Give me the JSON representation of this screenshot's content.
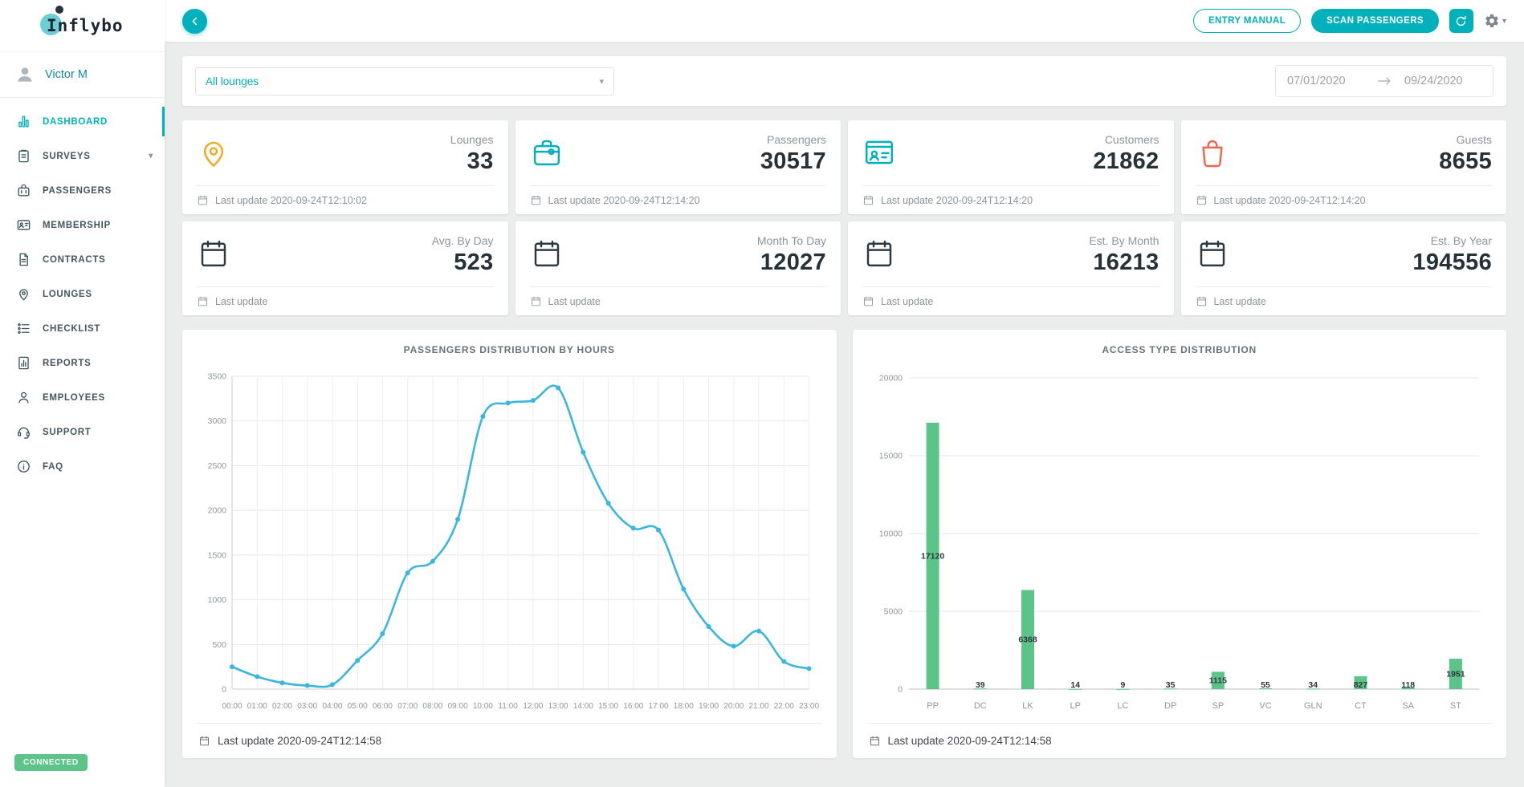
{
  "brand": {
    "name": "Inflybo",
    "connected_label": "CONNECTED"
  },
  "user": {
    "name": "Victor M"
  },
  "sidebar": {
    "items": [
      {
        "label": "DASHBOARD",
        "icon": "dashboard-icon",
        "active": true
      },
      {
        "label": "SURVEYS",
        "icon": "surveys-icon",
        "has_caret": true
      },
      {
        "label": "PASSENGERS",
        "icon": "passengers-icon"
      },
      {
        "label": "MEMBERSHIP",
        "icon": "membership-icon"
      },
      {
        "label": "CONTRACTS",
        "icon": "contracts-icon"
      },
      {
        "label": "LOUNGES",
        "icon": "lounges-icon"
      },
      {
        "label": "CHECKLIST",
        "icon": "checklist-icon"
      },
      {
        "label": "REPORTS",
        "icon": "reports-icon"
      },
      {
        "label": "EMPLOYEES",
        "icon": "employees-icon"
      },
      {
        "label": "SUPPORT",
        "icon": "support-icon"
      },
      {
        "label": "FAQ",
        "icon": "faq-icon"
      }
    ]
  },
  "topbar": {
    "entry_manual_label": "ENTRY MANUAL",
    "scan_passengers_label": "SCAN PASSENGERS"
  },
  "filters": {
    "lounge_select_value": "All lounges",
    "date_from": "07/01/2020",
    "date_to": "09/24/2020"
  },
  "stats": [
    {
      "label": "Lounges",
      "value": "33",
      "icon": "pin-icon",
      "icon_color": "#f6a821",
      "last_update": "Last update 2020-09-24T12:10:02"
    },
    {
      "label": "Passengers",
      "value": "30517",
      "icon": "suitcase-icon",
      "icon_color": "#00b1bc",
      "last_update": "Last update 2020-09-24T12:14:20"
    },
    {
      "label": "Customers",
      "value": "21862",
      "icon": "id-card-icon",
      "icon_color": "#00b1bc",
      "last_update": "Last update 2020-09-24T12:14:20"
    },
    {
      "label": "Guests",
      "value": "8655",
      "icon": "bag-icon",
      "icon_color": "#f2654d",
      "last_update": "Last update 2020-09-24T12:14:20"
    },
    {
      "label": "Avg. By Day",
      "value": "523",
      "icon": "calendar-icon",
      "icon_color": "#2b3a42",
      "last_update": "Last update"
    },
    {
      "label": "Month To Day",
      "value": "12027",
      "icon": "calendar-icon",
      "icon_color": "#2b3a42",
      "last_update": "Last update"
    },
    {
      "label": "Est. By Month",
      "value": "16213",
      "icon": "calendar-icon",
      "icon_color": "#2b3a42",
      "last_update": "Last update"
    },
    {
      "label": "Est. By Year",
      "value": "194556",
      "icon": "calendar-icon",
      "icon_color": "#2b3a42",
      "last_update": "Last update"
    }
  ],
  "chart_data": [
    {
      "type": "line",
      "title": "PASSENGERS DISTRIBUTION BY HOURS",
      "x": [
        "00:00",
        "01:00",
        "02:00",
        "03:00",
        "04:00",
        "05:00",
        "06:00",
        "07:00",
        "08:00",
        "09:00",
        "10:00",
        "11:00",
        "12:00",
        "13:00",
        "14:00",
        "15:00",
        "16:00",
        "17:00",
        "18:00",
        "19:00",
        "20:00",
        "21:00",
        "22:00",
        "23:00"
      ],
      "values": [
        250,
        140,
        70,
        40,
        50,
        320,
        620,
        1300,
        1430,
        1900,
        3050,
        3200,
        3230,
        3370,
        2650,
        2080,
        1800,
        1780,
        1120,
        700,
        480,
        650,
        310,
        230
      ],
      "ylim": [
        0,
        3500
      ],
      "ytick_step": 500,
      "grid": true,
      "legend": "none",
      "line_color": "#3ab7dc",
      "last_update": "Last update 2020-09-24T12:14:58"
    },
    {
      "type": "bar",
      "title": "ACCESS TYPE DISTRIBUTION",
      "categories": [
        "PP",
        "DC",
        "LK",
        "LP",
        "LC",
        "DP",
        "SP",
        "VC",
        "GLN",
        "CT",
        "SA",
        "ST"
      ],
      "values": [
        17120,
        39,
        6368,
        14,
        9,
        35,
        1115,
        55,
        34,
        827,
        118,
        1951
      ],
      "ylim": [
        0,
        20000
      ],
      "ytick_step": 5000,
      "grid": true,
      "legend": "none",
      "bar_color": "#5cc488",
      "last_update": "Last update 2020-09-24T12:14:58"
    }
  ],
  "colors": {
    "teal": "#00b1bc",
    "green": "#5cc488",
    "line_blue": "#3ab7dc",
    "orange": "#f6a821",
    "coral": "#f2654d"
  }
}
